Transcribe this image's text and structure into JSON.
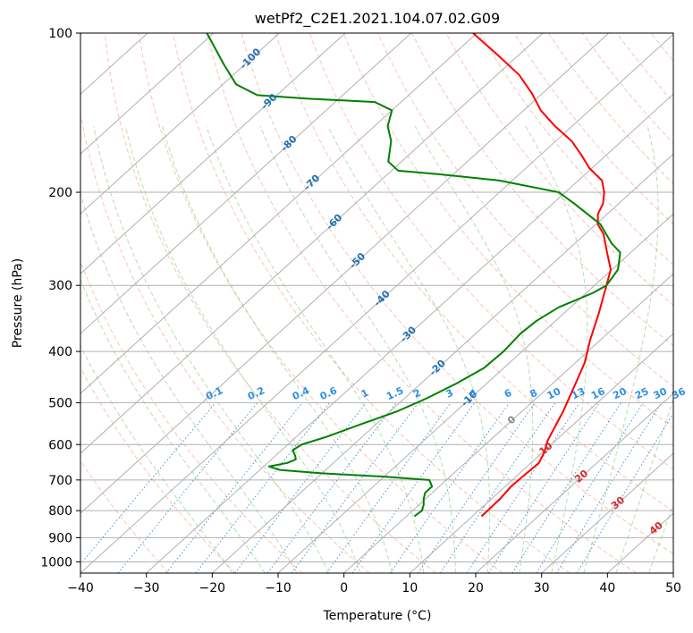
{
  "chart_data": {
    "type": "line",
    "subtype": "skew-T log-P diagram",
    "title": "wetPf2_C2E1.2021.104.07.02.G09",
    "xlabel": "Temperature (°C)",
    "ylabel": "Pressure (hPa)",
    "xlim": [
      -40,
      50
    ],
    "ylim": [
      1050,
      100
    ],
    "yscale": "log",
    "grid": true,
    "x_ticks": [
      "−40",
      "−30",
      "−20",
      "−10",
      "0",
      "10",
      "20",
      "30",
      "40",
      "50"
    ],
    "y_ticks": [
      {
        "p": 100,
        "label": "100"
      },
      {
        "p": 200,
        "label": "200"
      },
      {
        "p": 300,
        "label": "300"
      },
      {
        "p": 400,
        "label": "400"
      },
      {
        "p": 500,
        "label": "500"
      },
      {
        "p": 600,
        "label": "600"
      },
      {
        "p": 700,
        "label": "700"
      },
      {
        "p": 800,
        "label": "800"
      },
      {
        "p": 900,
        "label": "900"
      },
      {
        "p": 1000,
        "label": "1000"
      }
    ],
    "isotherm_labels": [
      {
        "t": -100,
        "p": 112,
        "label": "-100"
      },
      {
        "t": -90,
        "p": 135,
        "label": "-90"
      },
      {
        "t": -80,
        "p": 162,
        "label": "-80"
      },
      {
        "t": -70,
        "p": 192,
        "label": "-70"
      },
      {
        "t": -60,
        "p": 228,
        "label": "-60"
      },
      {
        "t": -50,
        "p": 270,
        "label": "-50"
      },
      {
        "t": -40,
        "p": 318,
        "label": "-40"
      },
      {
        "t": -30,
        "p": 372,
        "label": "-30"
      },
      {
        "t": -20,
        "p": 430,
        "label": "-20"
      },
      {
        "t": -10,
        "p": 492,
        "label": "-10"
      }
    ],
    "mixing_ratio_labels": [
      "0.1",
      "0.2",
      "0.4",
      "0.6",
      "1",
      "1.5",
      "2",
      "3",
      "4",
      "6",
      "8",
      "10",
      "13",
      "16",
      "20",
      "25",
      "30",
      "36"
    ],
    "moist_adiabat_labels": [
      {
        "t": 0,
        "p": 540,
        "label": "0"
      },
      {
        "t": 10,
        "p": 612,
        "label": "10"
      },
      {
        "t": 20,
        "p": 690,
        "label": "20"
      },
      {
        "t": 30,
        "p": 775,
        "label": "30"
      },
      {
        "t": 40,
        "p": 865,
        "label": "40"
      }
    ],
    "series": [
      {
        "color": "#ff0000",
        "points": [
          [
            820,
            11.4
          ],
          [
            760,
            11.3
          ],
          [
            720,
            10.9
          ],
          [
            690,
            11.0
          ],
          [
            650,
            11.2
          ],
          [
            620,
            10.2
          ],
          [
            590,
            8.8
          ],
          [
            550,
            7.4
          ],
          [
            520,
            6.3
          ],
          [
            500,
            5.4
          ],
          [
            460,
            3.5
          ],
          [
            420,
            1.4
          ],
          [
            380,
            -1.6
          ],
          [
            340,
            -4.6
          ],
          [
            300,
            -8.2
          ],
          [
            280,
            -10.2
          ],
          [
            260,
            -13.6
          ],
          [
            240,
            -17.2
          ],
          [
            230,
            -19.7
          ],
          [
            220,
            -21.4
          ],
          [
            210,
            -22.4
          ],
          [
            200,
            -24.1
          ],
          [
            190,
            -26.4
          ],
          [
            180,
            -30.4
          ],
          [
            170,
            -33.8
          ],
          [
            160,
            -37.6
          ],
          [
            150,
            -42.6
          ],
          [
            140,
            -47.4
          ],
          [
            130,
            -51.6
          ],
          [
            120,
            -56.6
          ],
          [
            110,
            -63.2
          ],
          [
            100,
            -70.6
          ]
        ]
      },
      {
        "color": "#008000",
        "points": [
          [
            820,
            1.2
          ],
          [
            800,
            1.4
          ],
          [
            780,
            0.7
          ],
          [
            760,
            -0.3
          ],
          [
            740,
            -1.1
          ],
          [
            720,
            -1.1
          ],
          [
            700,
            -2.6
          ],
          [
            690,
            -10.0
          ],
          [
            680,
            -20.0
          ],
          [
            670,
            -27.0
          ],
          [
            660,
            -29.2
          ],
          [
            650,
            -27.0
          ],
          [
            640,
            -26.3
          ],
          [
            630,
            -27.0
          ],
          [
            615,
            -28.3
          ],
          [
            600,
            -27.9
          ],
          [
            580,
            -25.4
          ],
          [
            550,
            -22.4
          ],
          [
            520,
            -19.0
          ],
          [
            490,
            -16.6
          ],
          [
            460,
            -14.6
          ],
          [
            430,
            -13.0
          ],
          [
            400,
            -12.8
          ],
          [
            370,
            -13.2
          ],
          [
            350,
            -12.9
          ],
          [
            330,
            -11.8
          ],
          [
            310,
            -9.0
          ],
          [
            300,
            -8.2
          ],
          [
            280,
            -9.1
          ],
          [
            260,
            -11.6
          ],
          [
            250,
            -14.4
          ],
          [
            230,
            -19.3
          ],
          [
            210,
            -26.8
          ],
          [
            200,
            -31.0
          ],
          [
            190,
            -42.0
          ],
          [
            185,
            -52.0
          ],
          [
            182,
            -59.0
          ],
          [
            175,
            -62.0
          ],
          [
            160,
            -65.0
          ],
          [
            150,
            -68.0
          ],
          [
            140,
            -70.0
          ],
          [
            135,
            -74.0
          ],
          [
            133,
            -85.0
          ],
          [
            131,
            -93.0
          ],
          [
            125,
            -98.0
          ],
          [
            115,
            -103.0
          ],
          [
            100,
            -111.0
          ]
        ]
      }
    ]
  }
}
